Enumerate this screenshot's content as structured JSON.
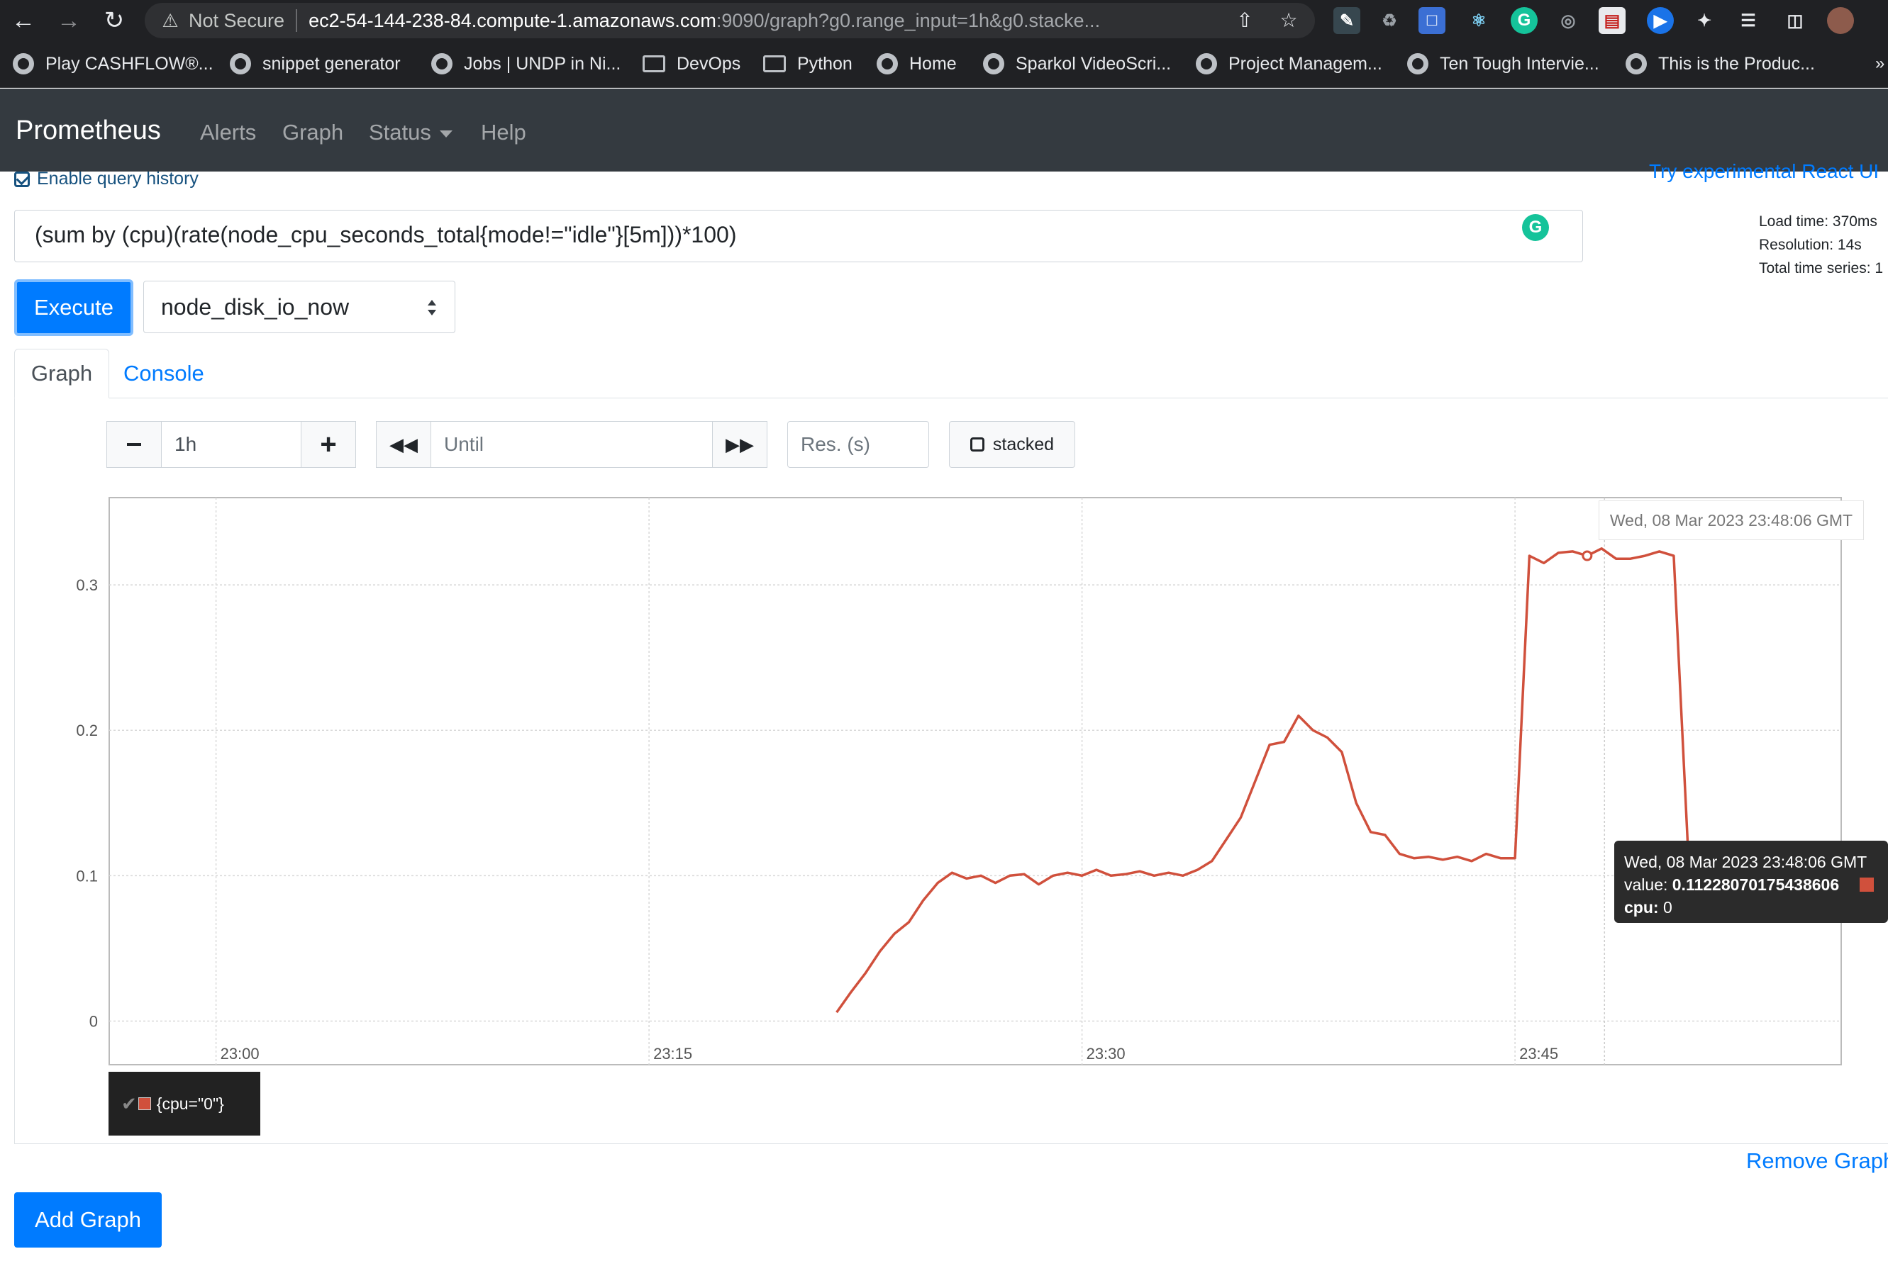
{
  "browser": {
    "security_label": "Not Secure",
    "url_host": "ec2-54-144-238-84.compute-1.amazonaws.com",
    "url_rest": ":9090/graph?g0.range_input=1h&g0.stacke...",
    "bookmarks": [
      "Play CASHFLOW®...",
      "snippet generator",
      "Jobs | UNDP in Ni...",
      "DevOps",
      "Python",
      "Home",
      "Sparkol VideoScri...",
      "Project Managem...",
      "Ten Tough Intervie...",
      "This is the Produc..."
    ],
    "overflow": "»"
  },
  "navbar": {
    "brand": "Prometheus",
    "links": [
      "Alerts",
      "Graph",
      "Status",
      "Help"
    ]
  },
  "page": {
    "query_history": "Enable query history",
    "experimental_link": "Try experimental React UI",
    "expression": "(sum by (cpu)(rate(node_cpu_seconds_total{mode!=\"idle\"}[5m]))*100)",
    "stats": {
      "load_time": "Load time: 370ms",
      "resolution": "Resolution: 14s",
      "total_series": "Total time series: 1"
    },
    "execute_label": "Execute",
    "metric_select": "node_disk_io_now",
    "tabs": [
      "Graph",
      "Console"
    ],
    "range_value": "1h",
    "until_placeholder": "Until",
    "res_placeholder": "Res. (s)",
    "stacked_label": "stacked",
    "remove_graph": "Remove Graph",
    "add_graph": "Add Graph"
  },
  "graph": {
    "hover_time": "Wed, 08 Mar 2023 23:48:06 GMT",
    "tooltip": {
      "time": "Wed, 08 Mar 2023 23:48:06 GMT",
      "value_label": "value:",
      "value": "0.11228070175438606",
      "label_key": "cpu:",
      "label_value": "0"
    },
    "legend": "{cpu=\"0\"}",
    "line_color": "#d0503c"
  },
  "chart_data": {
    "type": "line",
    "x_ticks": [
      "23:00",
      "23:15",
      "23:30",
      "23:45"
    ],
    "y_ticks": [
      "0",
      "0.1",
      "0.2",
      "0.3"
    ],
    "ylim": [
      -0.03,
      0.36
    ],
    "xlim_minutes_after_2300": [
      -3.7,
      56.3
    ],
    "grid": true,
    "series": [
      {
        "name": "{cpu=\"0\"}",
        "x_minutes_after_2300": [
          21.5,
          22,
          22.5,
          23,
          23.5,
          24,
          24.5,
          25,
          25.5,
          26,
          26.5,
          27,
          27.5,
          28,
          28.5,
          29,
          29.5,
          30,
          30.5,
          31,
          31.5,
          32,
          32.5,
          33,
          33.5,
          34,
          34.5,
          35,
          35.5,
          36,
          36.5,
          37,
          37.5,
          38,
          38.5,
          39,
          39.5,
          40,
          40.5,
          41,
          41.5,
          42,
          42.5,
          43,
          43.5,
          44,
          44.5,
          45,
          45.5,
          46,
          46.5,
          47,
          47.5,
          48,
          48.5,
          49,
          49.5,
          50,
          50.5,
          51,
          51.5,
          52,
          52.5,
          53,
          53.5,
          54
        ],
        "values": [
          0.006,
          0.02,
          0.033,
          0.048,
          0.06,
          0.068,
          0.083,
          0.095,
          0.102,
          0.098,
          0.1,
          0.095,
          0.1,
          0.101,
          0.094,
          0.1,
          0.102,
          0.1,
          0.104,
          0.1,
          0.101,
          0.103,
          0.1,
          0.102,
          0.1,
          0.104,
          0.11,
          0.125,
          0.14,
          0.165,
          0.19,
          0.192,
          0.21,
          0.2,
          0.195,
          0.185,
          0.15,
          0.13,
          0.128,
          0.115,
          0.112,
          0.113,
          0.111,
          0.113,
          0.11,
          0.115,
          0.112,
          0.112,
          0.32,
          0.315,
          0.322,
          0.323,
          0.32,
          0.325,
          0.318,
          0.318,
          0.32,
          0.323,
          0.32,
          0.115,
          0.113,
          0.115,
          0.112,
          0.114,
          0.113,
          0.113
        ]
      }
    ]
  }
}
